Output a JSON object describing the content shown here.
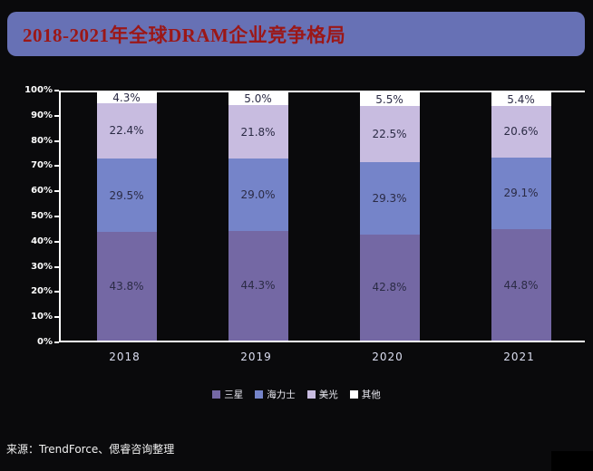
{
  "title": "2018-2021年全球DRAM企业竞争格局",
  "source": "来源：TrendForce、偲睿咨询整理",
  "colors": {
    "background": "#0a0a0c",
    "title_bar": "#6771B5",
    "title_text": "#9B1717",
    "axis": "#FFFFFF",
    "segment_label": "#2B2B45",
    "x_label": "#DCDFF2"
  },
  "chart_data": {
    "type": "bar",
    "stacked": true,
    "percent": true,
    "title": "2018-2021年全球DRAM企业竞争格局",
    "categories": [
      "2018",
      "2019",
      "2020",
      "2021"
    ],
    "series": [
      {
        "name": "三星",
        "color": "#7468A4",
        "values": [
          43.8,
          44.3,
          42.8,
          44.8
        ]
      },
      {
        "name": "海力士",
        "color": "#7584C9",
        "values": [
          29.5,
          29.0,
          29.3,
          29.1
        ]
      },
      {
        "name": "美光",
        "color": "#C8BCE0",
        "values": [
          22.4,
          21.8,
          22.5,
          20.6
        ]
      },
      {
        "name": "其他",
        "color": "#FFFFFF",
        "values": [
          4.3,
          5.0,
          5.5,
          5.4
        ]
      }
    ],
    "xlabel": "",
    "ylabel": "",
    "ylim": [
      0,
      100
    ],
    "yticks": [
      "0%",
      "10%",
      "20%",
      "30%",
      "40%",
      "50%",
      "60%",
      "70%",
      "80%",
      "90%",
      "100%"
    ],
    "grid": false,
    "legend_position": "bottom"
  }
}
